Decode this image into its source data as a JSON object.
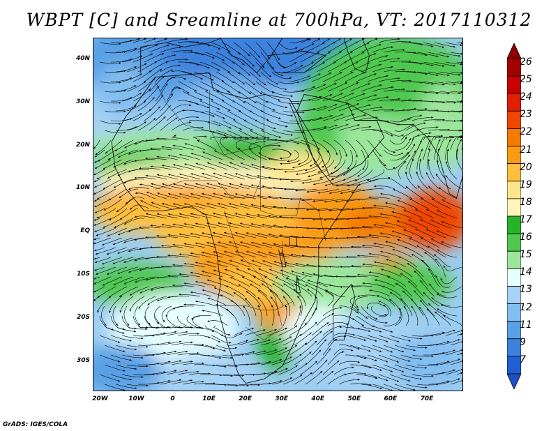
{
  "title": "WBPT [C] and Sreamline at 700hPa, VT: 2017110312",
  "credit": "GrADS: IGES/COLA",
  "map": {
    "lon_range": [
      -22,
      80
    ],
    "lat_range": [
      -37,
      45
    ],
    "lat_labels": [
      {
        "lat": 40,
        "text": "40N"
      },
      {
        "lat": 30,
        "text": "30N"
      },
      {
        "lat": 20,
        "text": "20N"
      },
      {
        "lat": 10,
        "text": "10N"
      },
      {
        "lat": 0,
        "text": "EQ"
      },
      {
        "lat": -10,
        "text": "10S"
      },
      {
        "lat": -20,
        "text": "20S"
      },
      {
        "lat": -30,
        "text": "30S"
      }
    ],
    "lon_labels": [
      {
        "lon": -20,
        "text": "20W"
      },
      {
        "lon": -10,
        "text": "10W"
      },
      {
        "lon": 0,
        "text": "0"
      },
      {
        "lon": 10,
        "text": "10E"
      },
      {
        "lon": 20,
        "text": "20E"
      },
      {
        "lon": 30,
        "text": "30E"
      },
      {
        "lon": 40,
        "text": "40E"
      },
      {
        "lon": 50,
        "text": "50E"
      },
      {
        "lon": 60,
        "text": "60E"
      },
      {
        "lon": 70,
        "text": "70E"
      }
    ]
  },
  "colorbar": {
    "labels": [
      "26",
      "25",
      "24",
      "23",
      "22",
      "21",
      "20",
      "19",
      "18",
      "17",
      "16",
      "15",
      "14",
      "13",
      "12",
      "11",
      "9",
      "7"
    ],
    "colors": [
      "#a50000",
      "#c80000",
      "#e01e00",
      "#f04600",
      "#f57a00",
      "#fa9b14",
      "#ffbf3c",
      "#ffe68c",
      "#fff5bd",
      "#28b428",
      "#50c850",
      "#9be69b",
      "#e6ffff",
      "#a5d2f5",
      "#82bef0",
      "#5aa0e6",
      "#3c82dc",
      "#1e5fd2"
    ],
    "top_arrow_color": "#8c0000",
    "bottom_arrow_color": "#1e50c8"
  }
}
